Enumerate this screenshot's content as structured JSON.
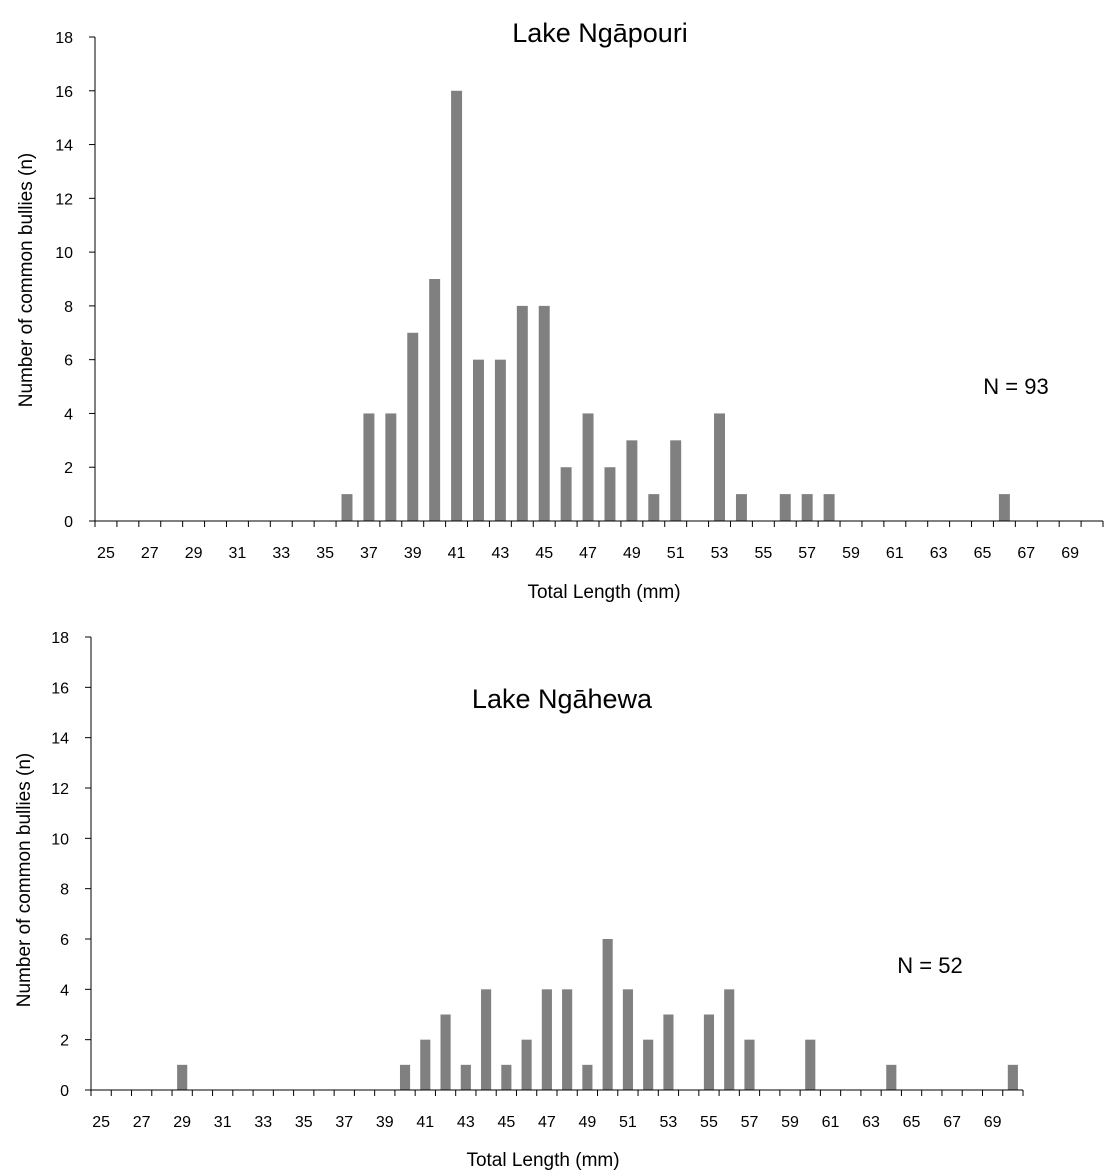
{
  "chart_data": [
    {
      "type": "bar",
      "title": "Lake Ngāpouri",
      "xlabel": "Total Length (mm)",
      "ylabel": "Number of common bullies (n)",
      "annotation": "N = 93",
      "bar_color": "#808080",
      "x_categories": [
        25,
        26,
        27,
        28,
        29,
        30,
        31,
        32,
        33,
        34,
        35,
        36,
        37,
        38,
        39,
        40,
        41,
        42,
        43,
        44,
        45,
        46,
        47,
        48,
        49,
        50,
        51,
        52,
        53,
        54,
        55,
        56,
        57,
        58,
        59,
        60,
        61,
        62,
        63,
        64,
        65,
        66,
        67,
        68,
        69,
        70
      ],
      "x_tick_labels": [
        "25",
        "27",
        "29",
        "31",
        "33",
        "35",
        "37",
        "39",
        "41",
        "43",
        "45",
        "47",
        "49",
        "51",
        "53",
        "55",
        "57",
        "59",
        "61",
        "63",
        "65",
        "67",
        "69"
      ],
      "values": [
        0,
        0,
        0,
        0,
        0,
        0,
        0,
        0,
        0,
        0,
        0,
        1,
        4,
        4,
        7,
        9,
        16,
        6,
        6,
        8,
        8,
        2,
        4,
        2,
        3,
        1,
        3,
        0,
        4,
        1,
        0,
        1,
        1,
        1,
        0,
        0,
        0,
        0,
        0,
        0,
        0,
        1,
        0,
        0,
        0,
        0
      ],
      "ylim": [
        0,
        18
      ],
      "y_ticks": [
        0,
        2,
        4,
        6,
        8,
        10,
        12,
        14,
        16,
        18
      ],
      "grid": false,
      "legend": "none"
    },
    {
      "type": "bar",
      "title": "Lake Ngāhewa",
      "xlabel": "Total Length (mm)",
      "ylabel": "Number of common bullies (n)",
      "annotation": "N = 52",
      "bar_color": "#808080",
      "x_categories": [
        25,
        26,
        27,
        28,
        29,
        30,
        31,
        32,
        33,
        34,
        35,
        36,
        37,
        38,
        39,
        40,
        41,
        42,
        43,
        44,
        45,
        46,
        47,
        48,
        49,
        50,
        51,
        52,
        53,
        54,
        55,
        56,
        57,
        58,
        59,
        60,
        61,
        62,
        63,
        64,
        65,
        66,
        67,
        68,
        69,
        70
      ],
      "x_tick_labels": [
        "25",
        "27",
        "29",
        "31",
        "33",
        "35",
        "37",
        "39",
        "41",
        "43",
        "45",
        "47",
        "49",
        "51",
        "53",
        "55",
        "57",
        "59",
        "61",
        "63",
        "65",
        "67",
        "69"
      ],
      "values": [
        0,
        0,
        0,
        0,
        1,
        0,
        0,
        0,
        0,
        0,
        0,
        0,
        0,
        0,
        0,
        1,
        2,
        3,
        1,
        4,
        1,
        2,
        4,
        4,
        1,
        6,
        4,
        2,
        3,
        0,
        3,
        4,
        2,
        0,
        0,
        2,
        0,
        0,
        0,
        1,
        0,
        0,
        0,
        0,
        0,
        1
      ],
      "ylim": [
        0,
        18
      ],
      "y_ticks": [
        0,
        2,
        4,
        6,
        8,
        10,
        12,
        14,
        16,
        18
      ],
      "grid": false,
      "legend": "none"
    }
  ]
}
